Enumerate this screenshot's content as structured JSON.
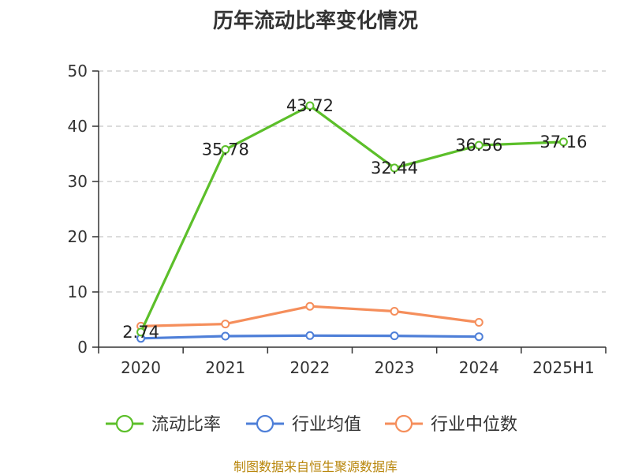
{
  "chart_data": {
    "type": "line",
    "title": "历年流动比率变化情况",
    "categories": [
      "2020",
      "2021",
      "2022",
      "2023",
      "2024",
      "2025H1"
    ],
    "ylim": [
      0,
      50
    ],
    "yticks": [
      0,
      10,
      20,
      30,
      40,
      50
    ],
    "grid": true,
    "legend_position": "bottom",
    "series": [
      {
        "name": "流动比率",
        "color": "#5cbf2a",
        "values": [
          2.74,
          35.78,
          43.72,
          32.44,
          36.56,
          37.16
        ],
        "labels": [
          "2.74",
          "35.78",
          "43.72",
          "32.44",
          "36.56",
          "37.16"
        ]
      },
      {
        "name": "行业均值",
        "color": "#4e7fd8",
        "values": [
          1.6,
          2.0,
          2.1,
          2.05,
          1.9,
          null
        ]
      },
      {
        "name": "行业中位数",
        "color": "#f58e5b",
        "values": [
          3.8,
          4.2,
          7.4,
          6.5,
          4.5,
          null
        ]
      }
    ]
  },
  "source": "制图数据来自恒生聚源数据库"
}
